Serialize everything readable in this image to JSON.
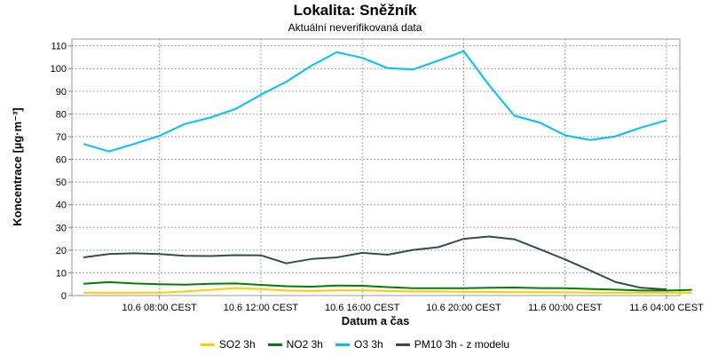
{
  "chart_data": {
    "type": "line",
    "title": "Lokalita: Sněžník",
    "subtitle": "Aktuální neverifikovaná data",
    "xlabel": "Datum a čas",
    "ylabel": "Koncentrace [µg·m⁻³]",
    "ylim": [
      0,
      113
    ],
    "yticks": [
      0,
      10,
      20,
      30,
      40,
      50,
      60,
      70,
      80,
      90,
      100,
      110
    ],
    "x": [
      "10.6 05:00",
      "10.6 06:00",
      "10.6 07:00",
      "10.6 08:00",
      "10.6 09:00",
      "10.6 10:00",
      "10.6 11:00",
      "10.6 12:00",
      "10.6 13:00",
      "10.6 14:00",
      "10.6 15:00",
      "10.6 16:00",
      "10.6 17:00",
      "10.6 18:00",
      "10.6 19:00",
      "10.6 20:00",
      "10.6 21:00",
      "10.6 22:00",
      "10.6 23:00",
      "11.6 00:00",
      "11.6 01:00",
      "11.6 02:00",
      "11.6 03:00",
      "11.6 04:00",
      "11.6 05:00"
    ],
    "xtick_labels": [
      "10.6 08:00 CEST",
      "10.6 12:00 CEST",
      "10.6 16:00 CEST",
      "10.6 20:00 CEST",
      "11.6 00:00 CEST",
      "11.6 04:00 CEST"
    ],
    "xtick_index": [
      3,
      7,
      11,
      15,
      19,
      23
    ],
    "grid": true,
    "legend_position": "bottom",
    "series": [
      {
        "name": "SO2 3h",
        "color": "#ffcc00",
        "values": [
          1.2,
          1.2,
          1.2,
          1.2,
          1.8,
          2.5,
          3.3,
          2.8,
          2.2,
          2.0,
          2.3,
          2.3,
          2.0,
          1.8,
          1.8,
          1.6,
          1.6,
          1.5,
          1.5,
          1.4,
          1.3,
          1.2,
          1.2,
          1.2,
          1.2
        ]
      },
      {
        "name": "NO2 3h",
        "color": "#008000",
        "values": [
          5.2,
          5.9,
          5.3,
          5.0,
          4.8,
          5.2,
          5.3,
          4.7,
          4.1,
          3.9,
          4.4,
          4.3,
          3.7,
          3.2,
          3.2,
          3.2,
          3.4,
          3.5,
          3.3,
          3.2,
          2.9,
          2.6,
          2.2,
          2.2,
          2.5
        ]
      },
      {
        "name": "O3 3h",
        "color": "#00bfff",
        "values": [
          66.8,
          63.5,
          66.8,
          70.4,
          75.6,
          78.4,
          82.2,
          88.5,
          94.2,
          101.3,
          107.2,
          104.7,
          100.2,
          99.6,
          103.5,
          107.7,
          92.7,
          79.2,
          76.2,
          70.6,
          68.5,
          70.2,
          74.0,
          77.2,
          null
        ]
      },
      {
        "name": "PM10 3h - z modelu",
        "color": "#2f4f4f",
        "values": [
          16.8,
          18.3,
          18.6,
          18.3,
          17.5,
          17.4,
          17.8,
          17.7,
          14.2,
          16.1,
          16.8,
          18.8,
          18.0,
          20.1,
          21.3,
          25.0,
          26.0,
          24.8,
          20.4,
          15.9,
          11.0,
          5.9,
          3.4,
          2.7,
          null
        ]
      }
    ]
  }
}
